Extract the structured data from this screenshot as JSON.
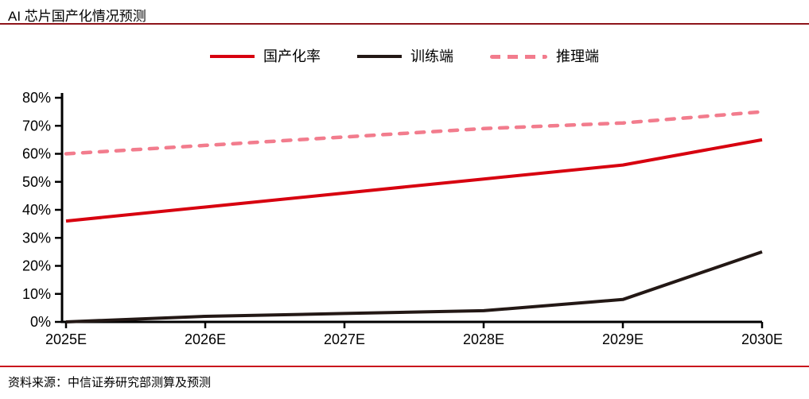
{
  "header": {
    "title": "AI 芯片国产化情况预测"
  },
  "footer": {
    "source": "资料来源：中信证券研究部测算及预测"
  },
  "colors": {
    "header_rule": "#8e141b",
    "footer_rule": "#c9161d",
    "axis": "#000000",
    "line_red": "#d7000f",
    "line_black": "#231815",
    "line_pink": "#f27c8d"
  },
  "chart_data": {
    "type": "line",
    "title": "AI 芯片国产化情况预测",
    "categories": [
      "2025E",
      "2026E",
      "2027E",
      "2028E",
      "2029E",
      "2030E"
    ],
    "y_ticks": [
      0,
      10,
      20,
      30,
      40,
      50,
      60,
      70,
      80
    ],
    "y_tick_suffix": "%",
    "ylim": [
      0,
      80
    ],
    "grid": false,
    "legend_position": "top-center",
    "series": [
      {
        "name": "国产化率",
        "style": "solid",
        "color": "#d7000f",
        "values": [
          36,
          41,
          46,
          51,
          56,
          65
        ]
      },
      {
        "name": "训练端",
        "style": "solid",
        "color": "#231815",
        "values": [
          0,
          2,
          3,
          4,
          8,
          25
        ]
      },
      {
        "name": "推理端",
        "style": "dashed",
        "color": "#f27c8d",
        "values": [
          60,
          63,
          66,
          69,
          71,
          75
        ]
      }
    ]
  }
}
